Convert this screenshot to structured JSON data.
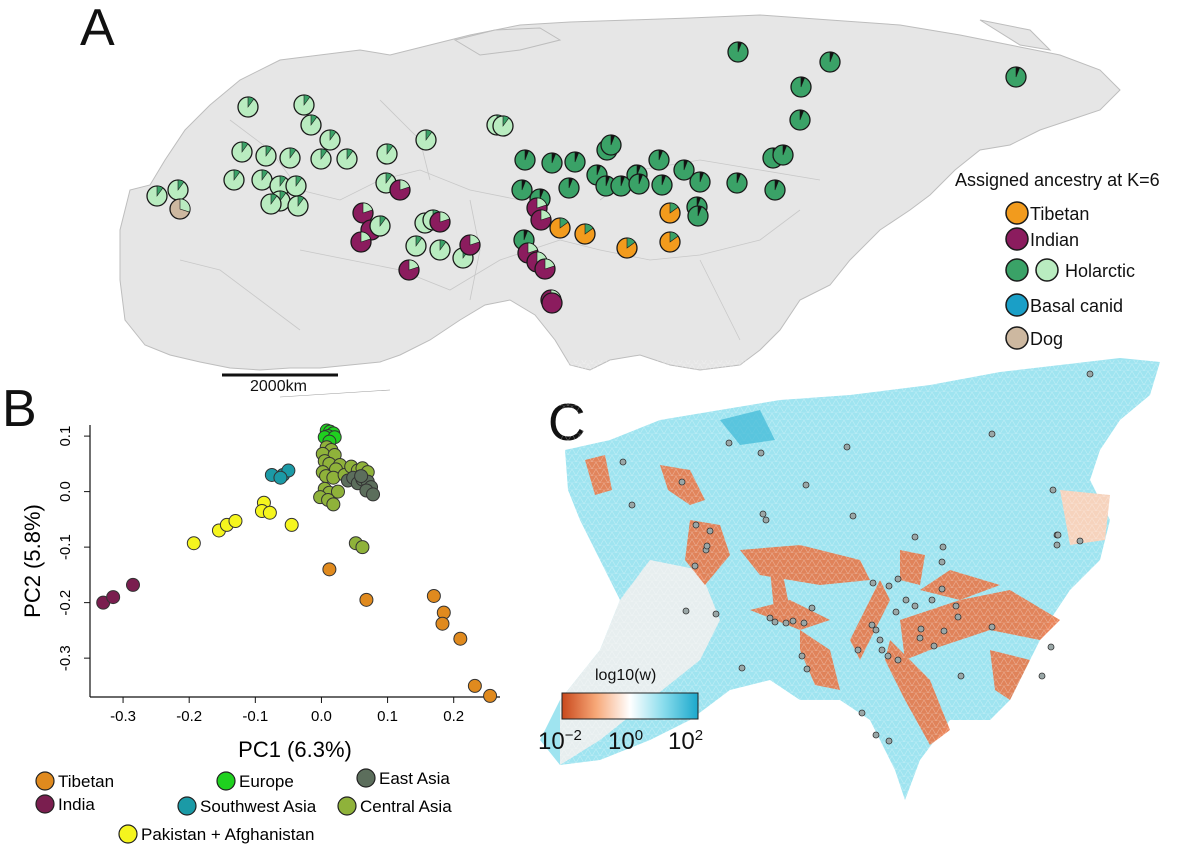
{
  "panels": {
    "a": {
      "letter": "A"
    },
    "b": {
      "letter": "B"
    },
    "c": {
      "letter": "C"
    }
  },
  "map_a": {
    "scalebar_label": "2000km",
    "legend": {
      "title": "Assigned ancestry at K=6",
      "items": [
        {
          "label": "Tibetan",
          "colors": [
            "#f29b1d"
          ]
        },
        {
          "label": "Indian",
          "colors": [
            "#8b1c5e"
          ]
        },
        {
          "label": "Holarctic",
          "colors": [
            "#3aa267",
            "#b9ecc0"
          ]
        },
        {
          "label": "Basal canid",
          "colors": [
            "#1a9fc7"
          ]
        },
        {
          "label": "Dog",
          "colors": [
            "#cdb8a0"
          ]
        }
      ]
    },
    "colors": {
      "land": "#e6e6e6",
      "border": "#bdbdbd",
      "tibetan": "#f29b1d",
      "indian": "#8b1c5e",
      "holarctic_dark": "#3aa267",
      "holarctic_light": "#b9ecc0",
      "dog": "#cdb8a0"
    }
  },
  "chart_data": [
    {
      "type": "scatter",
      "xlabel": "PC1 (6.3%)",
      "ylabel": "PC2 (5.8%)",
      "xlim": [
        -0.35,
        0.27
      ],
      "ylim": [
        -0.37,
        0.12
      ],
      "xticks": [
        "-0.3",
        "-0.2",
        "-0.1",
        "0.0",
        "0.1",
        "0.2"
      ],
      "yticks": [
        "0.1",
        "0.0",
        "-0.1",
        "-0.2",
        "-0.3"
      ],
      "legend": [
        {
          "label": "Tibetan",
          "color": "#e08a1e"
        },
        {
          "label": "Europe",
          "color": "#1fd11f"
        },
        {
          "label": "East Asia",
          "color": "#5c6e5c"
        },
        {
          "label": "India",
          "color": "#7a1e4f"
        },
        {
          "label": "Southwest Asia",
          "color": "#1b9aa6"
        },
        {
          "label": "Central Asia",
          "color": "#8fb23a"
        },
        {
          "label": "Pakistan + Afghanistan",
          "color": "#f5f51e"
        }
      ],
      "series": [
        {
          "name": "India",
          "color": "#7a1e4f",
          "points": [
            [
              -0.33,
              -0.2
            ],
            [
              -0.315,
              -0.19
            ],
            [
              -0.285,
              -0.168
            ]
          ]
        },
        {
          "name": "Tibetan",
          "color": "#e08a1e",
          "points": [
            [
              0.012,
              -0.14
            ],
            [
              0.068,
              -0.195
            ],
            [
              0.17,
              -0.188
            ],
            [
              0.185,
              -0.218
            ],
            [
              0.183,
              -0.238
            ],
            [
              0.21,
              -0.265
            ],
            [
              0.232,
              -0.35
            ],
            [
              0.255,
              -0.368
            ]
          ]
        },
        {
          "name": "Pakistan + Afghanistan",
          "color": "#f5f51e",
          "points": [
            [
              -0.193,
              -0.093
            ],
            [
              -0.155,
              -0.07
            ],
            [
              -0.143,
              -0.06
            ],
            [
              -0.13,
              -0.053
            ],
            [
              -0.087,
              -0.02
            ],
            [
              -0.09,
              -0.035
            ],
            [
              -0.078,
              -0.038
            ],
            [
              -0.045,
              -0.06
            ]
          ]
        },
        {
          "name": "Southwest Asia",
          "color": "#1b9aa6",
          "points": [
            [
              -0.075,
              0.03
            ],
            [
              -0.058,
              0.03
            ],
            [
              -0.05,
              0.038
            ],
            [
              -0.062,
              0.025
            ]
          ]
        },
        {
          "name": "Europe",
          "color": "#1fd11f",
          "points": [
            [
              0.008,
              0.11
            ],
            [
              0.013,
              0.108
            ],
            [
              0.018,
              0.105
            ],
            [
              0.01,
              0.1
            ],
            [
              0.005,
              0.098
            ],
            [
              0.02,
              0.098
            ],
            [
              0.012,
              0.09
            ]
          ]
        },
        {
          "name": "Central Asia",
          "color": "#8fb23a",
          "points": [
            [
              0.008,
              0.08
            ],
            [
              0.015,
              0.075
            ],
            [
              0.002,
              0.068
            ],
            [
              0.02,
              0.066
            ],
            [
              0.005,
              0.055
            ],
            [
              0.012,
              0.05
            ],
            [
              0.028,
              0.048
            ],
            [
              0.022,
              0.04
            ],
            [
              0.002,
              0.035
            ],
            [
              0.007,
              0.028
            ],
            [
              0.018,
              0.025
            ],
            [
              0.035,
              0.03
            ],
            [
              0.045,
              0.045
            ],
            [
              0.055,
              0.038
            ],
            [
              0.062,
              0.042
            ],
            [
              0.07,
              0.035
            ],
            [
              0.005,
              0.005
            ],
            [
              0.012,
              -0.002
            ],
            [
              0.025,
              0.0
            ],
            [
              -0.002,
              -0.01
            ],
            [
              0.01,
              -0.015
            ],
            [
              0.018,
              -0.023
            ],
            [
              0.052,
              -0.093
            ],
            [
              0.062,
              -0.1
            ]
          ]
        },
        {
          "name": "East Asia",
          "color": "#5c6e5c",
          "points": [
            [
              0.04,
              0.02
            ],
            [
              0.048,
              0.025
            ],
            [
              0.055,
              0.015
            ],
            [
              0.062,
              0.022
            ],
            [
              0.07,
              0.018
            ],
            [
              0.075,
              0.008
            ],
            [
              0.068,
              0.002
            ],
            [
              0.078,
              -0.005
            ],
            [
              0.06,
              0.028
            ]
          ]
        }
      ]
    },
    {
      "type": "heatmap",
      "title": "log10(w)",
      "colorbar": {
        "ticks": [
          "10−2",
          "100",
          "102"
        ],
        "colors": [
          "#c9481c",
          "#f7a878",
          "#ffffff",
          "#88dcec",
          "#1ba8cc"
        ]
      }
    }
  ]
}
